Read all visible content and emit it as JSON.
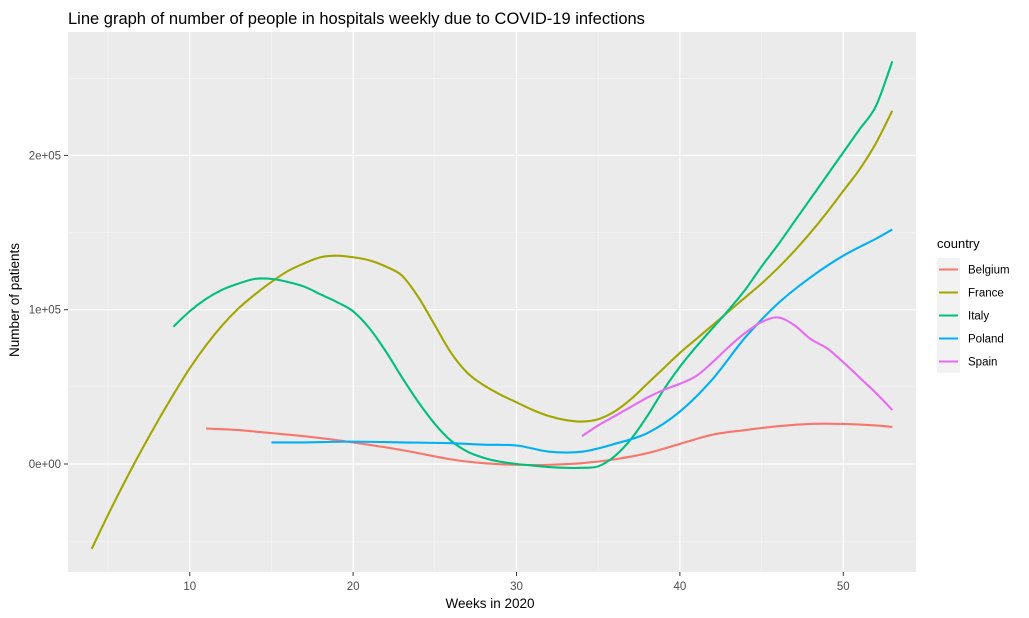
{
  "chart_data": {
    "type": "line",
    "title": "Line graph of number of people in hospitals weekly due to COVID-19 infections",
    "xlabel": "Weeks in 2020",
    "ylabel": "Number of patients",
    "xlim": [
      2.55,
      54.45
    ],
    "ylim": [
      -70000,
      280000
    ],
    "x_ticks": [
      10,
      20,
      30,
      40,
      50
    ],
    "x_tick_labels": [
      "10",
      "20",
      "30",
      "40",
      "50"
    ],
    "y_ticks": [
      0,
      100000,
      200000
    ],
    "y_tick_labels": [
      "0e+00",
      "1e+05",
      "2e+05"
    ],
    "grid": true,
    "legend": {
      "title": "country",
      "position": "right"
    },
    "series": [
      {
        "name": "Belgium",
        "color": "#F8766D",
        "x": [
          11,
          13,
          15,
          17,
          20,
          23,
          26,
          28,
          30,
          32,
          34,
          36,
          38,
          40,
          42,
          44,
          46,
          48,
          50,
          52,
          53
        ],
        "y": [
          23000,
          22000,
          20000,
          18000,
          14000,
          9000,
          3000,
          500,
          -500,
          -500,
          500,
          3000,
          7000,
          13000,
          19000,
          22000,
          24500,
          26000,
          26000,
          25000,
          24000
        ]
      },
      {
        "name": "France",
        "color": "#A3A500",
        "x": [
          4,
          5,
          6,
          7,
          8,
          9,
          10,
          11,
          12,
          13,
          14,
          15,
          16,
          17,
          18,
          19,
          20,
          21,
          22,
          23,
          24,
          25,
          26,
          27,
          28,
          29,
          30,
          31,
          32,
          33,
          34,
          35,
          36,
          37,
          38,
          39,
          40,
          41,
          42,
          43,
          44,
          45,
          46,
          47,
          48,
          49,
          50,
          51,
          52,
          53
        ],
        "y": [
          -55000,
          -33000,
          -12000,
          8000,
          27000,
          45000,
          62000,
          77000,
          90000,
          101000,
          110000,
          118000,
          125000,
          130000,
          134000,
          135000,
          134000,
          132000,
          128000,
          122000,
          108000,
          90000,
          72000,
          59000,
          51000,
          45000,
          40000,
          35000,
          31000,
          28500,
          27500,
          29000,
          34000,
          42000,
          52000,
          62000,
          72000,
          81000,
          90000,
          99000,
          108000,
          117000,
          127000,
          138000,
          150000,
          163000,
          177000,
          191000,
          208000,
          229000
        ]
      },
      {
        "name": "Italy",
        "color": "#00BF7D",
        "x": [
          9,
          10,
          11,
          12,
          13,
          14,
          15,
          16,
          17,
          18,
          19,
          20,
          21,
          22,
          23,
          24,
          25,
          26,
          27,
          28,
          29,
          30,
          31,
          32,
          33,
          34,
          35,
          36,
          37,
          38,
          39,
          40,
          41,
          42,
          43,
          44,
          45,
          46,
          47,
          48,
          49,
          50,
          51,
          52,
          53
        ],
        "y": [
          89000,
          99000,
          107000,
          113000,
          117000,
          120000,
          120000,
          118000,
          115000,
          110000,
          105000,
          99000,
          88000,
          73000,
          56000,
          40000,
          26000,
          15000,
          8000,
          4000,
          1500,
          0,
          -1000,
          -2000,
          -2500,
          -2500,
          -1500,
          5000,
          16000,
          31000,
          48000,
          63000,
          76000,
          88000,
          100000,
          113000,
          128000,
          142000,
          157000,
          172000,
          187000,
          202000,
          217000,
          232000,
          261000
        ]
      },
      {
        "name": "Poland",
        "color": "#00B0F6",
        "x": [
          15,
          17,
          20,
          23,
          26,
          28,
          30,
          32,
          34,
          36,
          38,
          40,
          42,
          44,
          46,
          48,
          50,
          52,
          53
        ],
        "y": [
          14000,
          14000,
          14500,
          14000,
          13500,
          12500,
          12000,
          8000,
          8000,
          13000,
          20000,
          34000,
          55000,
          82000,
          104000,
          121000,
          135000,
          146000,
          152000
        ]
      },
      {
        "name": "Spain",
        "color": "#E76BF3",
        "x": [
          34,
          35,
          36,
          37,
          38,
          39,
          40,
          41,
          42,
          43,
          44,
          45,
          46,
          47,
          48,
          49,
          50,
          51,
          52,
          53
        ],
        "y": [
          18000,
          25000,
          31000,
          37000,
          43000,
          48000,
          52000,
          57000,
          66000,
          76000,
          85000,
          92000,
          95000,
          90000,
          81000,
          75000,
          66000,
          56000,
          46000,
          35000
        ]
      }
    ]
  }
}
